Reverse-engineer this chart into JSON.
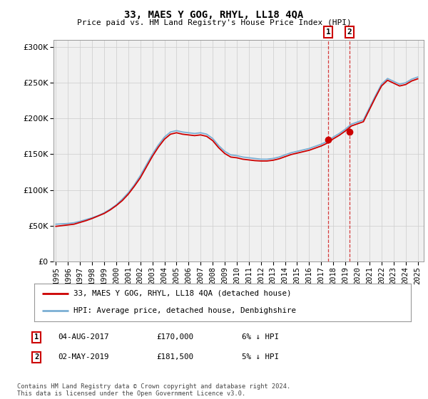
{
  "title": "33, MAES Y GOG, RHYL, LL18 4QA",
  "subtitle": "Price paid vs. HM Land Registry's House Price Index (HPI)",
  "legend_line1": "33, MAES Y GOG, RHYL, LL18 4QA (detached house)",
  "legend_line2": "HPI: Average price, detached house, Denbighshire",
  "sale1_label": "1",
  "sale1_date": "04-AUG-2017",
  "sale1_price": "£170,000",
  "sale1_hpi": "6% ↓ HPI",
  "sale1_year": 2017.58,
  "sale1_value": 170000,
  "sale2_label": "2",
  "sale2_date": "02-MAY-2019",
  "sale2_price": "£181,500",
  "sale2_hpi": "5% ↓ HPI",
  "sale2_year": 2019.33,
  "sale2_value": 181500,
  "vline1_year": 2017.58,
  "vline2_year": 2019.33,
  "copyright": "Contains HM Land Registry data © Crown copyright and database right 2024.\nThis data is licensed under the Open Government Licence v3.0.",
  "hpi_color": "#7bafd4",
  "price_color": "#cc0000",
  "marker_color": "#cc0000",
  "background_color": "#f0f0f0",
  "ylim": [
    0,
    310000
  ],
  "yticks": [
    0,
    50000,
    100000,
    150000,
    200000,
    250000,
    300000
  ],
  "xlim_start": 1994.8,
  "xlim_end": 2025.5,
  "years_hpi": [
    1995.0,
    1995.5,
    1996.0,
    1996.5,
    1997.0,
    1997.5,
    1998.0,
    1998.5,
    1999.0,
    1999.5,
    2000.0,
    2000.5,
    2001.0,
    2001.5,
    2002.0,
    2002.5,
    2003.0,
    2003.5,
    2004.0,
    2004.5,
    2005.0,
    2005.5,
    2006.0,
    2006.5,
    2007.0,
    2007.5,
    2008.0,
    2008.5,
    2009.0,
    2009.5,
    2010.0,
    2010.5,
    2011.0,
    2011.5,
    2012.0,
    2012.5,
    2013.0,
    2013.5,
    2014.0,
    2014.5,
    2015.0,
    2015.5,
    2016.0,
    2016.5,
    2017.0,
    2017.5,
    2018.0,
    2018.5,
    2019.0,
    2019.5,
    2020.0,
    2020.5,
    2021.0,
    2021.5,
    2022.0,
    2022.5,
    2023.0,
    2023.5,
    2024.0,
    2024.5,
    2025.0
  ],
  "hpi_values": [
    52000,
    52500,
    53000,
    54000,
    56000,
    58500,
    61000,
    64000,
    68000,
    73000,
    79000,
    87000,
    96000,
    107000,
    120000,
    135000,
    150000,
    163000,
    174000,
    181000,
    183000,
    181000,
    180000,
    179000,
    180000,
    178000,
    172000,
    162000,
    154000,
    149000,
    148000,
    146000,
    145000,
    144000,
    143000,
    143000,
    144000,
    146000,
    149000,
    152000,
    154000,
    156000,
    158000,
    161000,
    164000,
    168000,
    174000,
    179000,
    185000,
    192000,
    195000,
    198000,
    215000,
    232000,
    248000,
    256000,
    252000,
    248000,
    250000,
    255000,
    258000
  ],
  "price_values": [
    49000,
    50000,
    51000,
    52000,
    54500,
    57000,
    60000,
    63500,
    67000,
    72000,
    78000,
    85000,
    94000,
    105000,
    117000,
    132000,
    147000,
    160000,
    171000,
    178000,
    180000,
    178000,
    177000,
    176000,
    177000,
    175000,
    169000,
    159000,
    151000,
    146000,
    145000,
    143000,
    142000,
    141000,
    140500,
    140500,
    141500,
    143500,
    146500,
    149500,
    151500,
    153500,
    155500,
    158500,
    161500,
    165500,
    171500,
    176500,
    182500,
    189500,
    192500,
    195500,
    212500,
    229500,
    245500,
    253500,
    249500,
    245500,
    247500,
    252500,
    255500
  ]
}
